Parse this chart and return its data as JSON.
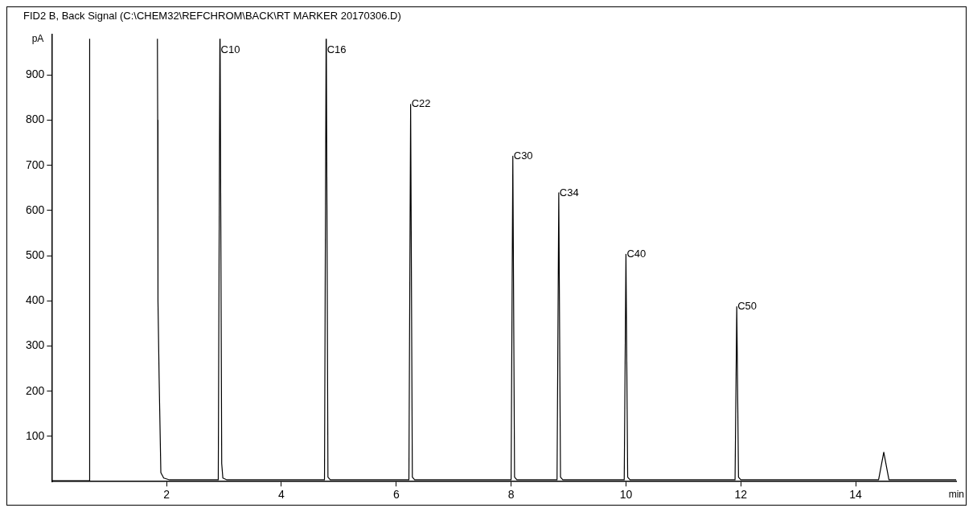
{
  "chart_data": {
    "type": "line",
    "title": "FID2 B, Back Signal (C:\\CHEM32\\REFCHROM\\BACK\\RT MARKER 20170306.D)",
    "xlabel": "min",
    "ylabel": "pA",
    "x": [
      0,
      0.5,
      0.655,
      0.66,
      1.2,
      1.84,
      1.845,
      1.85,
      1.87,
      1.9,
      1.95,
      2.05,
      2.9,
      2.928,
      2.93,
      2.932,
      2.96,
      2.98,
      3.05,
      4.75,
      4.778,
      4.78,
      4.782,
      4.81,
      4.85,
      6.22,
      6.25,
      6.28,
      6.32,
      8.0,
      8.03,
      8.06,
      8.1,
      8.8,
      8.83,
      8.86,
      8.9,
      9.97,
      10.0,
      10.03,
      10.07,
      11.9,
      11.93,
      11.96,
      12.0,
      14.4,
      14.49,
      14.58,
      15.75
    ],
    "values": [
      2,
      2,
      2,
      980,
      null,
      980,
      800,
      400,
      230,
      20,
      8,
      4,
      4,
      980,
      null,
      980,
      40,
      8,
      4,
      4,
      980,
      null,
      980,
      10,
      4,
      4,
      835,
      10,
      4,
      4,
      720,
      10,
      4,
      4,
      639,
      10,
      4,
      4,
      503,
      10,
      4,
      4,
      387,
      10,
      4,
      4,
      65,
      4,
      4
    ],
    "color": "#000000",
    "marker": "none",
    "line_style": "solid",
    "grid": false,
    "legend": false,
    "xlim": [
      0,
      15.75
    ],
    "xticks": [
      2,
      4,
      6,
      8,
      10,
      12,
      14
    ],
    "ylim": [
      0,
      990
    ],
    "yticks": [
      100,
      200,
      300,
      400,
      500,
      600,
      700,
      800,
      900
    ],
    "annotations": [
      {
        "text": "C10",
        "x": 2.93,
        "y": 955
      },
      {
        "text": "C16",
        "x": 4.78,
        "y": 955
      },
      {
        "text": "C22",
        "x": 6.25,
        "y": 835
      },
      {
        "text": "C30",
        "x": 8.03,
        "y": 720
      },
      {
        "text": "C34",
        "x": 8.83,
        "y": 639
      },
      {
        "text": "C40",
        "x": 10.0,
        "y": 503
      },
      {
        "text": "C50",
        "x": 11.93,
        "y": 387
      }
    ]
  }
}
